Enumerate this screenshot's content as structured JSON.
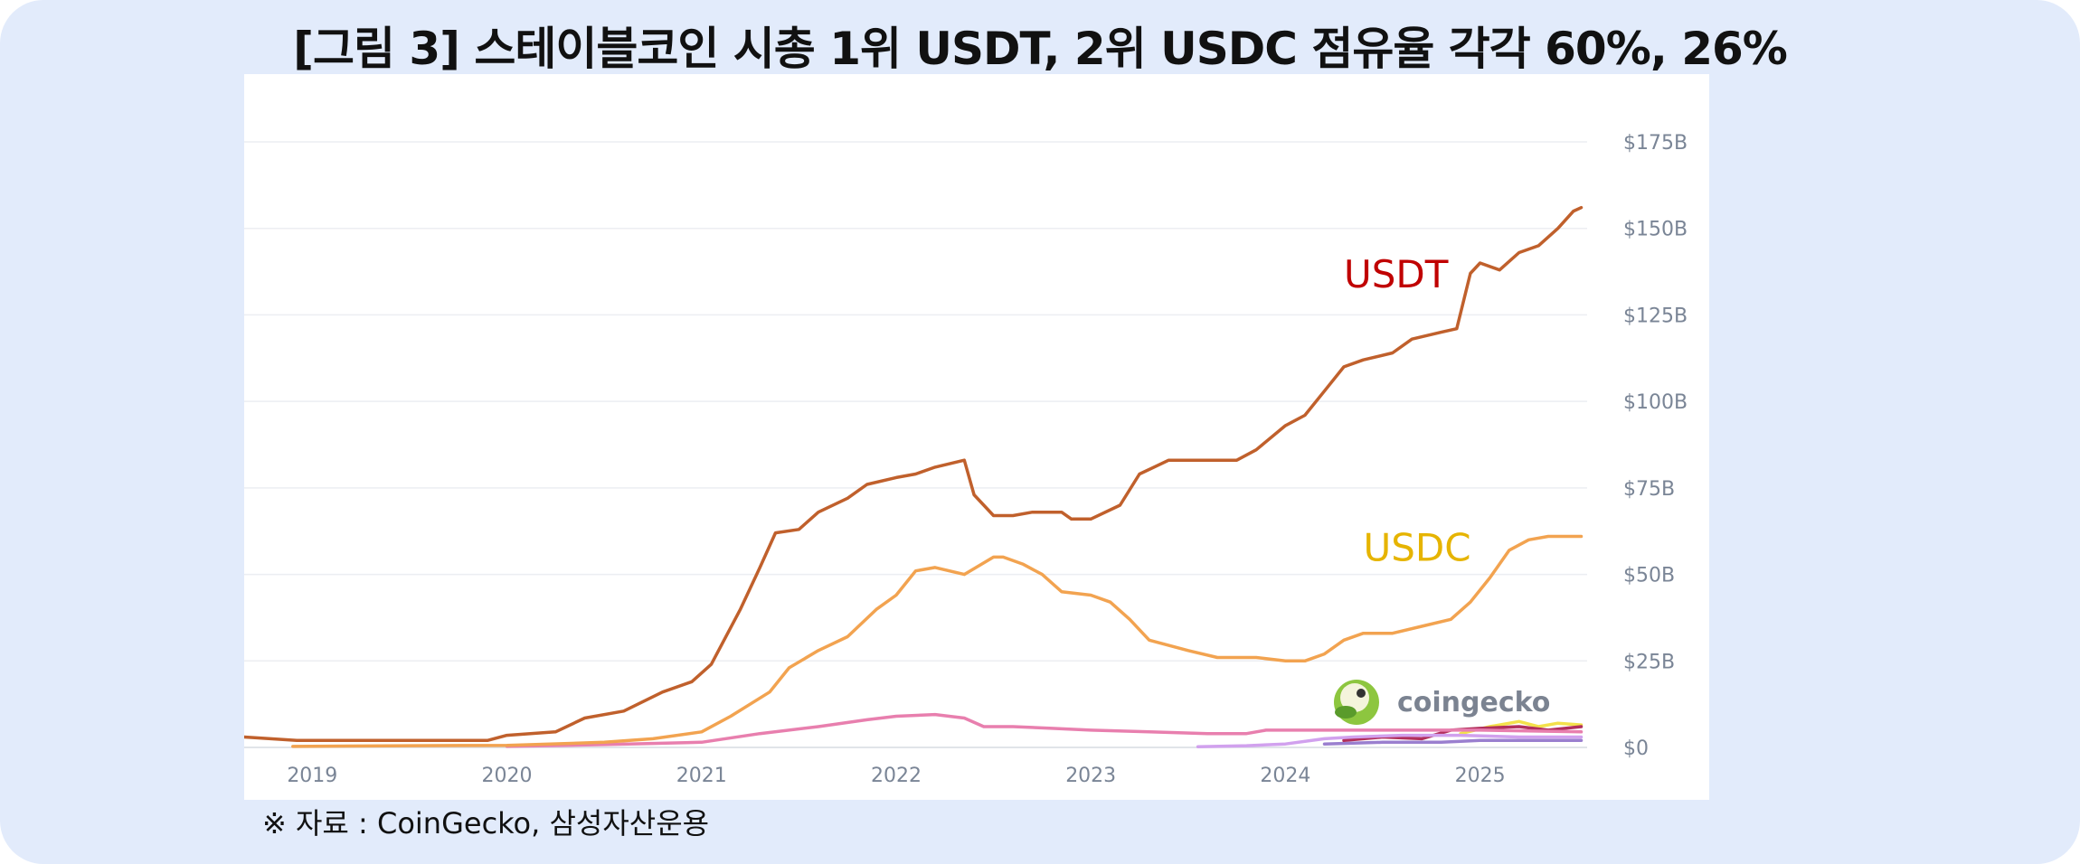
{
  "figure": {
    "title": "[그림 3] 스테이블코인 시총 1위 USDT, 2위 USDC 점유율 각각 60%, 26%",
    "source": "※ 자료 : CoinGecko, 삼성자산운용",
    "watermark": "coingecko"
  },
  "chart_data": {
    "type": "line",
    "xlabel": "",
    "ylabel": "",
    "xlim": [
      2018.65,
      2025.55
    ],
    "ylim": [
      0,
      175
    ],
    "x_ticks": [
      "2019",
      "2020",
      "2021",
      "2022",
      "2023",
      "2024",
      "2025"
    ],
    "y_ticks": [
      "$0",
      "$25B",
      "$50B",
      "$75B",
      "$100B",
      "$125B",
      "$150B",
      "$175B"
    ],
    "grid": true,
    "y_axis_side": "right",
    "series": [
      {
        "name": "USDT",
        "label": "USDT",
        "color": "#c0602c",
        "label_color": "#c00000",
        "points": [
          [
            2018.65,
            3
          ],
          [
            2018.92,
            2
          ],
          [
            2019.9,
            2
          ],
          [
            2020.0,
            3.5
          ],
          [
            2020.25,
            4.5
          ],
          [
            2020.4,
            8.5
          ],
          [
            2020.6,
            10.5
          ],
          [
            2020.8,
            16
          ],
          [
            2020.95,
            19
          ],
          [
            2021.05,
            24
          ],
          [
            2021.2,
            40
          ],
          [
            2021.3,
            52
          ],
          [
            2021.38,
            62
          ],
          [
            2021.5,
            63
          ],
          [
            2021.6,
            68
          ],
          [
            2021.75,
            72
          ],
          [
            2021.85,
            76
          ],
          [
            2022.0,
            78
          ],
          [
            2022.1,
            79
          ],
          [
            2022.2,
            81
          ],
          [
            2022.35,
            83
          ],
          [
            2022.4,
            73
          ],
          [
            2022.5,
            67
          ],
          [
            2022.6,
            67
          ],
          [
            2022.7,
            68
          ],
          [
            2022.85,
            68
          ],
          [
            2022.9,
            66
          ],
          [
            2023.0,
            66
          ],
          [
            2023.15,
            70
          ],
          [
            2023.25,
            79
          ],
          [
            2023.4,
            83
          ],
          [
            2023.6,
            83
          ],
          [
            2023.75,
            83
          ],
          [
            2023.85,
            86
          ],
          [
            2024.0,
            93
          ],
          [
            2024.1,
            96
          ],
          [
            2024.2,
            103
          ],
          [
            2024.3,
            110
          ],
          [
            2024.4,
            112
          ],
          [
            2024.55,
            114
          ],
          [
            2024.65,
            118
          ],
          [
            2024.8,
            120
          ],
          [
            2024.88,
            121
          ],
          [
            2024.95,
            137
          ],
          [
            2025.0,
            140
          ],
          [
            2025.1,
            138
          ],
          [
            2025.2,
            143
          ],
          [
            2025.3,
            145
          ],
          [
            2025.4,
            150
          ],
          [
            2025.48,
            155
          ],
          [
            2025.52,
            156
          ]
        ]
      },
      {
        "name": "USDC",
        "label": "USDC",
        "color": "#f2a350",
        "label_color": "#e6b400",
        "points": [
          [
            2018.9,
            0.3
          ],
          [
            2019.5,
            0.5
          ],
          [
            2020.0,
            0.6
          ],
          [
            2020.5,
            1.5
          ],
          [
            2020.75,
            2.5
          ],
          [
            2021.0,
            4.5
          ],
          [
            2021.15,
            9
          ],
          [
            2021.35,
            16
          ],
          [
            2021.45,
            23
          ],
          [
            2021.6,
            28
          ],
          [
            2021.75,
            32
          ],
          [
            2021.9,
            40
          ],
          [
            2022.0,
            44
          ],
          [
            2022.1,
            51
          ],
          [
            2022.2,
            52
          ],
          [
            2022.35,
            50
          ],
          [
            2022.5,
            55
          ],
          [
            2022.55,
            55
          ],
          [
            2022.65,
            53
          ],
          [
            2022.75,
            50
          ],
          [
            2022.85,
            45
          ],
          [
            2023.0,
            44
          ],
          [
            2023.1,
            42
          ],
          [
            2023.2,
            37
          ],
          [
            2023.3,
            31
          ],
          [
            2023.5,
            28
          ],
          [
            2023.65,
            26
          ],
          [
            2023.85,
            26
          ],
          [
            2024.0,
            25
          ],
          [
            2024.1,
            25
          ],
          [
            2024.2,
            27
          ],
          [
            2024.3,
            31
          ],
          [
            2024.4,
            33
          ],
          [
            2024.55,
            33
          ],
          [
            2024.7,
            35
          ],
          [
            2024.85,
            37
          ],
          [
            2024.95,
            42
          ],
          [
            2025.05,
            49
          ],
          [
            2025.15,
            57
          ],
          [
            2025.25,
            60
          ],
          [
            2025.35,
            61
          ],
          [
            2025.52,
            61
          ]
        ]
      },
      {
        "name": "",
        "color": "#e87fae",
        "points": [
          [
            2020.0,
            0.3
          ],
          [
            2020.5,
            0.8
          ],
          [
            2021.0,
            1.5
          ],
          [
            2021.3,
            4
          ],
          [
            2021.6,
            6
          ],
          [
            2021.85,
            8
          ],
          [
            2022.0,
            9
          ],
          [
            2022.2,
            9.5
          ],
          [
            2022.35,
            8.5
          ],
          [
            2022.45,
            6
          ],
          [
            2022.6,
            6
          ],
          [
            2022.8,
            5.5
          ],
          [
            2023.0,
            5
          ],
          [
            2023.3,
            4.5
          ],
          [
            2023.6,
            4
          ],
          [
            2023.8,
            4
          ],
          [
            2023.9,
            5
          ],
          [
            2024.5,
            5
          ],
          [
            2025.0,
            5
          ],
          [
            2025.52,
            4.5
          ]
        ]
      },
      {
        "name": "",
        "color": "#d1a1ee",
        "points": [
          [
            2023.55,
            0.2
          ],
          [
            2023.8,
            0.5
          ],
          [
            2024.0,
            1
          ],
          [
            2024.2,
            2.5
          ],
          [
            2024.35,
            3
          ],
          [
            2024.6,
            3.5
          ],
          [
            2024.9,
            3.5
          ],
          [
            2025.2,
            3
          ],
          [
            2025.52,
            3
          ]
        ]
      },
      {
        "name": "",
        "color": "#b22f5c",
        "points": [
          [
            2024.3,
            2
          ],
          [
            2024.5,
            3
          ],
          [
            2024.7,
            2.5
          ],
          [
            2024.85,
            5
          ],
          [
            2025.0,
            5.5
          ],
          [
            2025.2,
            6
          ],
          [
            2025.35,
            5
          ],
          [
            2025.52,
            6
          ]
        ]
      },
      {
        "name": "",
        "color": "#f3e14b",
        "points": [
          [
            2024.9,
            4
          ],
          [
            2025.05,
            6
          ],
          [
            2025.2,
            7.5
          ],
          [
            2025.3,
            6
          ],
          [
            2025.4,
            7
          ],
          [
            2025.52,
            6.5
          ]
        ]
      },
      {
        "name": "",
        "color": "#9a7fcf",
        "points": [
          [
            2024.2,
            1
          ],
          [
            2024.5,
            1.5
          ],
          [
            2024.8,
            1.5
          ],
          [
            2025.0,
            2
          ],
          [
            2025.52,
            2
          ]
        ]
      }
    ]
  }
}
